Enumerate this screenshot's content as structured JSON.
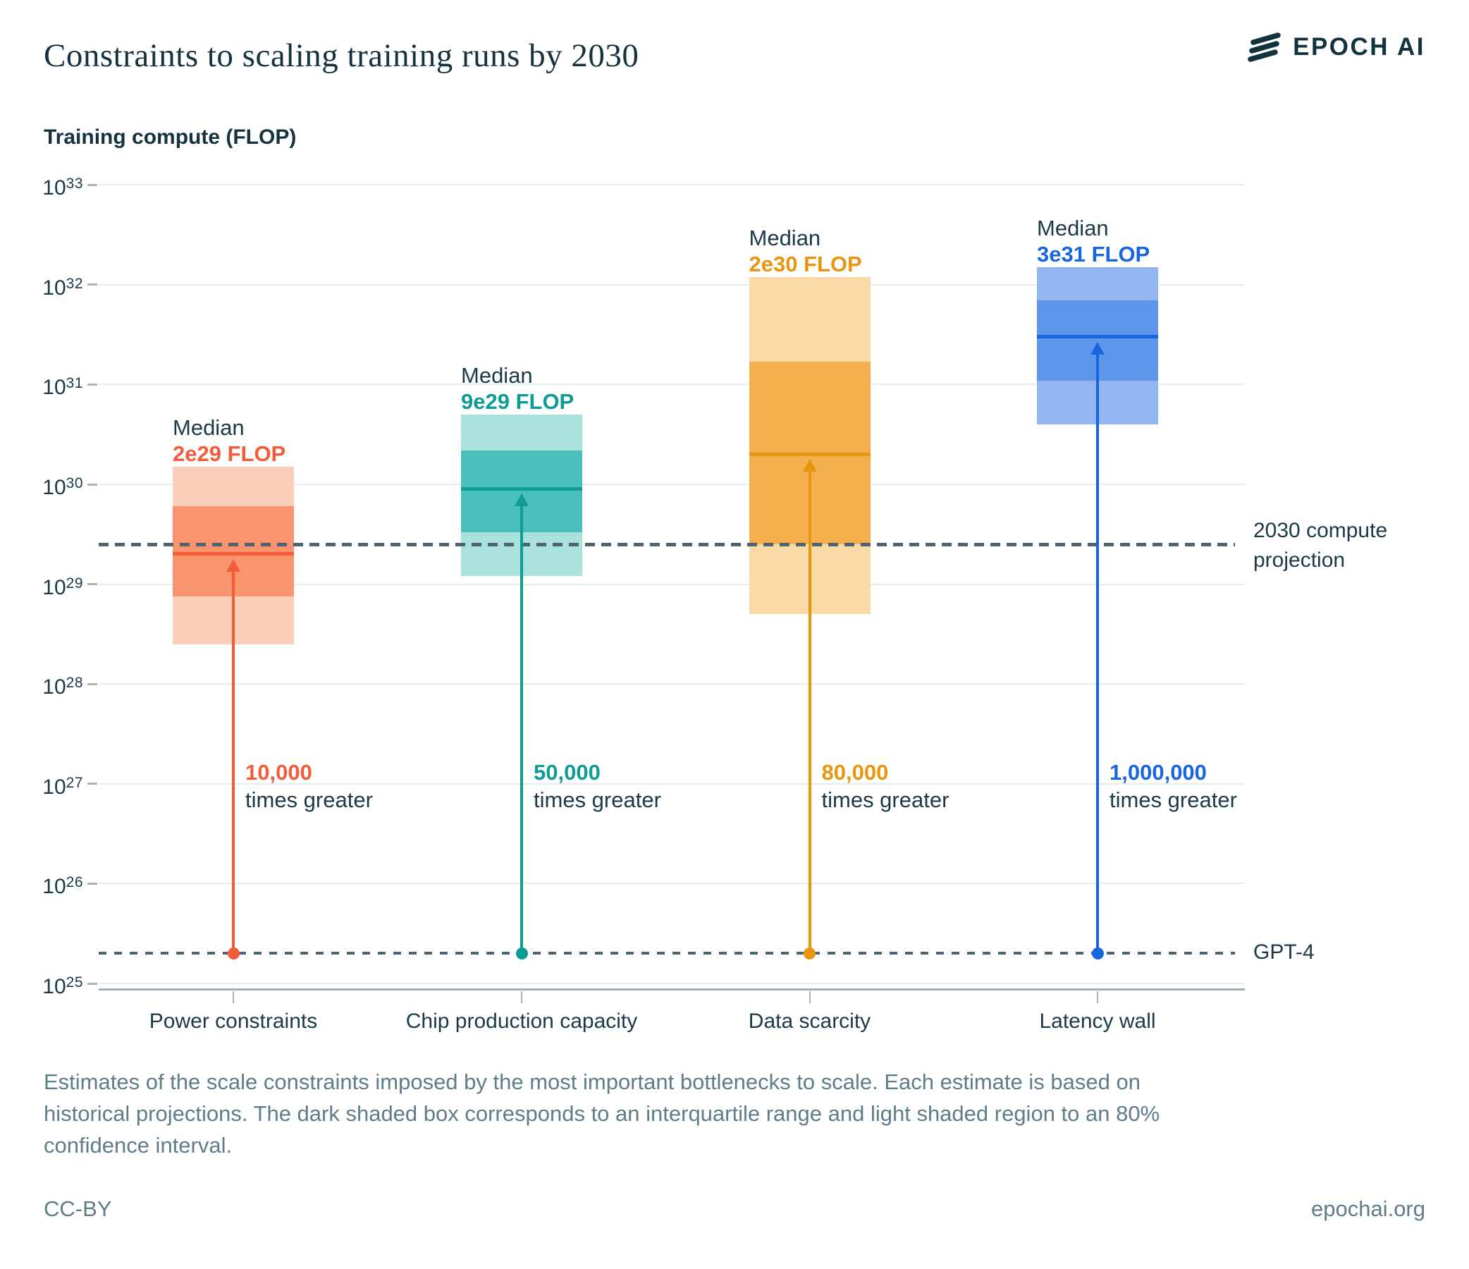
{
  "header": {
    "title": "Constraints to scaling training runs by 2030",
    "logo_text": "EPOCH AI"
  },
  "chart_data": {
    "type": "box-range",
    "title": "Constraints to scaling training runs by 2030",
    "ylabel": "Training compute (FLOP)",
    "y_axis": {
      "scale": "log10",
      "exponents": [
        33,
        32,
        31,
        30,
        29,
        28,
        27,
        26,
        25
      ],
      "unit": "FLOP"
    },
    "grid": "horizontal",
    "categories": [
      {
        "label": "Power constraints",
        "median": 2e+29,
        "median_label_word": "Median",
        "median_value_label": "2e29 FLOP",
        "iqr": [
          7.5e+28,
          6e+29
        ],
        "ci80": [
          2.5e+28,
          1.5e+30
        ],
        "multiplier": "10,000",
        "multiplier_suffix": "times greater",
        "colors": {
          "accent": "#F25C38",
          "dark": "#F9946F",
          "light": "#FCCFBB"
        }
      },
      {
        "label": "Chip production capacity",
        "median": 9e+29,
        "median_label_word": "Median",
        "median_value_label": "9e29 FLOP",
        "iqr": [
          3.3e+29,
          2.2e+30
        ],
        "ci80": [
          1.2e+29,
          5e+30
        ],
        "multiplier": "50,000",
        "multiplier_suffix": "times greater",
        "colors": {
          "accent": "#0F9C94",
          "dark": "#4AC0BB",
          "light": "#A9E1DD"
        }
      },
      {
        "label": "Data scarcity",
        "median": 2e+30,
        "median_label_word": "Median",
        "median_value_label": "2e30 FLOP",
        "iqr": [
          2.5e+29,
          1.7e+31
        ],
        "ci80": [
          5e+28,
          1.2e+32
        ],
        "multiplier": "80,000",
        "multiplier_suffix": "times greater",
        "colors": {
          "accent": "#E8950F",
          "dark": "#F4B04F",
          "light": "#F9D9A6"
        }
      },
      {
        "label": "Latency wall",
        "median": 3e+31,
        "median_label_word": "Median",
        "median_value_label": "3e31 FLOP",
        "iqr": [
          1.1e+31,
          7e+31
        ],
        "ci80": [
          4e+30,
          1.5e+32
        ],
        "multiplier": "1,000,000",
        "multiplier_suffix": "times greater",
        "colors": {
          "accent": "#1865E0",
          "dark": "#5E96EA",
          "light": "#94B6F0"
        }
      }
    ],
    "reference_lines": [
      {
        "id": "projection-2030",
        "label": "2030 compute projection",
        "value": 2.5e+29
      },
      {
        "id": "gpt-4",
        "label": "GPT-4",
        "value": 2e+25
      }
    ],
    "legend_position": "none"
  },
  "caption": {
    "lines": [
      "Estimates of the scale constraints imposed by the most important bottlenecks to scale. Each estimate is based on",
      "historical projections. The dark shaded box corresponds to an interquartile range and light shaded region to an 80%",
      "confidence interval."
    ]
  },
  "footer": {
    "license": "CC-BY",
    "site": "epochai.org"
  }
}
